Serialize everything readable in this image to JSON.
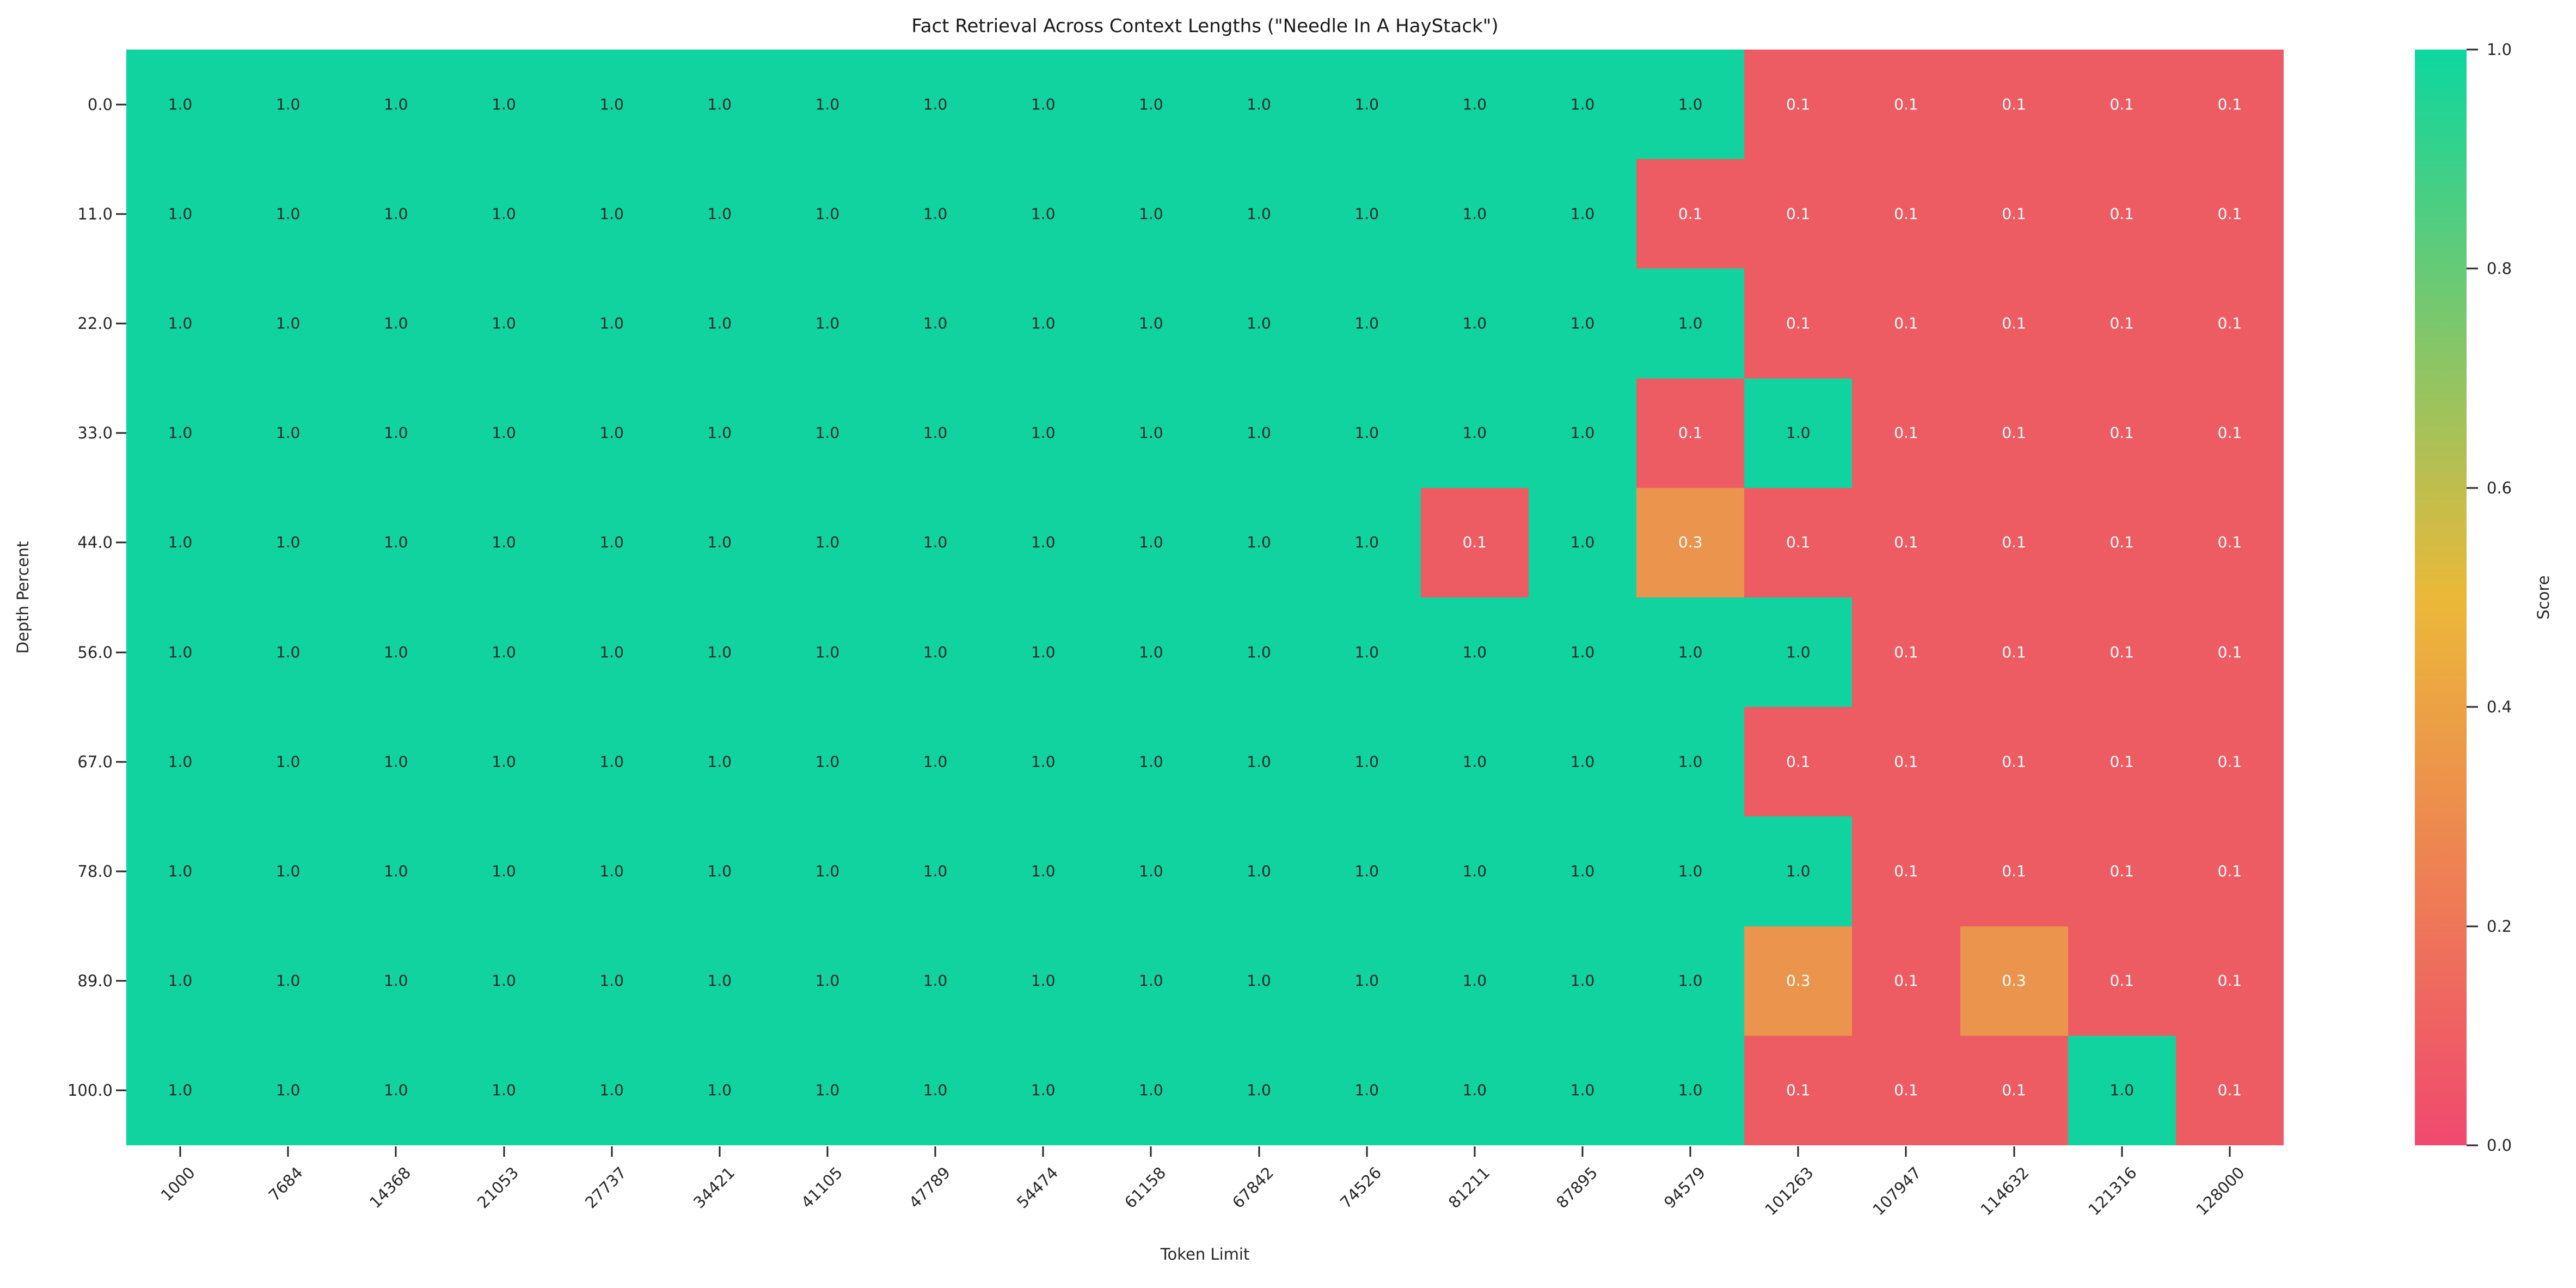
{
  "chart_data": {
    "type": "heatmap",
    "title": "Fact Retrieval Across Context Lengths (\"Needle In A HayStack\")",
    "xlabel": "Token Limit",
    "ylabel": "Depth Percent",
    "colorbar_label": "Score",
    "x_categories": [
      "1000",
      "7684",
      "14368",
      "21053",
      "27737",
      "34421",
      "41105",
      "47789",
      "54474",
      "61158",
      "67842",
      "74526",
      "81211",
      "87895",
      "94579",
      "101263",
      "107947",
      "114632",
      "121316",
      "128000"
    ],
    "y_categories": [
      "0.0",
      "11.0",
      "22.0",
      "33.0",
      "44.0",
      "56.0",
      "67.0",
      "78.0",
      "89.0",
      "100.0"
    ],
    "matrix": [
      [
        "1.0",
        "1.0",
        "1.0",
        "1.0",
        "1.0",
        "1.0",
        "1.0",
        "1.0",
        "1.0",
        "1.0",
        "1.0",
        "1.0",
        "1.0",
        "1.0",
        "1.0",
        "0.1",
        "0.1",
        "0.1",
        "0.1",
        "0.1"
      ],
      [
        "1.0",
        "1.0",
        "1.0",
        "1.0",
        "1.0",
        "1.0",
        "1.0",
        "1.0",
        "1.0",
        "1.0",
        "1.0",
        "1.0",
        "1.0",
        "1.0",
        "0.1",
        "0.1",
        "0.1",
        "0.1",
        "0.1",
        "0.1"
      ],
      [
        "1.0",
        "1.0",
        "1.0",
        "1.0",
        "1.0",
        "1.0",
        "1.0",
        "1.0",
        "1.0",
        "1.0",
        "1.0",
        "1.0",
        "1.0",
        "1.0",
        "1.0",
        "0.1",
        "0.1",
        "0.1",
        "0.1",
        "0.1"
      ],
      [
        "1.0",
        "1.0",
        "1.0",
        "1.0",
        "1.0",
        "1.0",
        "1.0",
        "1.0",
        "1.0",
        "1.0",
        "1.0",
        "1.0",
        "1.0",
        "1.0",
        "0.1",
        "1.0",
        "0.1",
        "0.1",
        "0.1",
        "0.1"
      ],
      [
        "1.0",
        "1.0",
        "1.0",
        "1.0",
        "1.0",
        "1.0",
        "1.0",
        "1.0",
        "1.0",
        "1.0",
        "1.0",
        "1.0",
        "0.1",
        "1.0",
        "0.3",
        "0.1",
        "0.1",
        "0.1",
        "0.1",
        "0.1"
      ],
      [
        "1.0",
        "1.0",
        "1.0",
        "1.0",
        "1.0",
        "1.0",
        "1.0",
        "1.0",
        "1.0",
        "1.0",
        "1.0",
        "1.0",
        "1.0",
        "1.0",
        "1.0",
        "1.0",
        "0.1",
        "0.1",
        "0.1",
        "0.1"
      ],
      [
        "1.0",
        "1.0",
        "1.0",
        "1.0",
        "1.0",
        "1.0",
        "1.0",
        "1.0",
        "1.0",
        "1.0",
        "1.0",
        "1.0",
        "1.0",
        "1.0",
        "1.0",
        "0.1",
        "0.1",
        "0.1",
        "0.1",
        "0.1"
      ],
      [
        "1.0",
        "1.0",
        "1.0",
        "1.0",
        "1.0",
        "1.0",
        "1.0",
        "1.0",
        "1.0",
        "1.0",
        "1.0",
        "1.0",
        "1.0",
        "1.0",
        "1.0",
        "1.0",
        "0.1",
        "0.1",
        "0.1",
        "0.1"
      ],
      [
        "1.0",
        "1.0",
        "1.0",
        "1.0",
        "1.0",
        "1.0",
        "1.0",
        "1.0",
        "1.0",
        "1.0",
        "1.0",
        "1.0",
        "1.0",
        "1.0",
        "1.0",
        "0.3",
        "0.1",
        "0.3",
        "0.1",
        "0.1"
      ],
      [
        "1.0",
        "1.0",
        "1.0",
        "1.0",
        "1.0",
        "1.0",
        "1.0",
        "1.0",
        "1.0",
        "1.0",
        "1.0",
        "1.0",
        "1.0",
        "1.0",
        "1.0",
        "0.1",
        "0.1",
        "0.1",
        "1.0",
        "0.1"
      ]
    ],
    "colorbar_ticks": [
      "1.0",
      "0.8",
      "0.6",
      "0.4",
      "0.2",
      "0.0"
    ],
    "colorbar_range": [
      0.0,
      1.0
    ],
    "colorbar_position": "right",
    "grid": false,
    "value_colors": {
      "1.0": "#10d3a0",
      "0.3": "#eb944d",
      "0.1": "#ee5c63"
    },
    "value_text_colors": {
      "1.0": "#262626",
      "0.3": "#ffffff",
      "0.1": "#ffffff"
    },
    "colorbar_gradient": {
      "top": "#0cd79f",
      "middle": "#ebb839",
      "bottom": "#f0496e"
    }
  }
}
